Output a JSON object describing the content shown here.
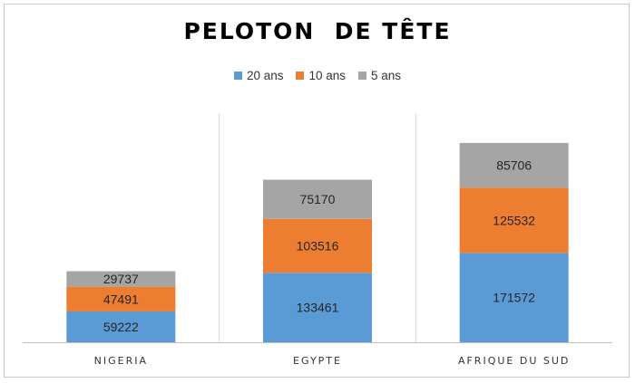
{
  "chart_data": {
    "type": "bar",
    "stacked": true,
    "title": "PELOTON  DE TÊTE",
    "categories": [
      "NIGERIA",
      "EGYPTE",
      "AFRIQUE DU SUD"
    ],
    "series": [
      {
        "name": "20 ans",
        "color": "#5b9bd5",
        "values": [
          59222,
          133461,
          171572
        ]
      },
      {
        "name": "10 ans",
        "color": "#ed7d31",
        "values": [
          47491,
          103516,
          125532
        ]
      },
      {
        "name": "5 ans",
        "color": "#a5a5a5",
        "values": [
          29737,
          75170,
          85706
        ]
      }
    ],
    "legend_position": "top",
    "grid": false,
    "ylim": [
      0,
      440000
    ]
  }
}
